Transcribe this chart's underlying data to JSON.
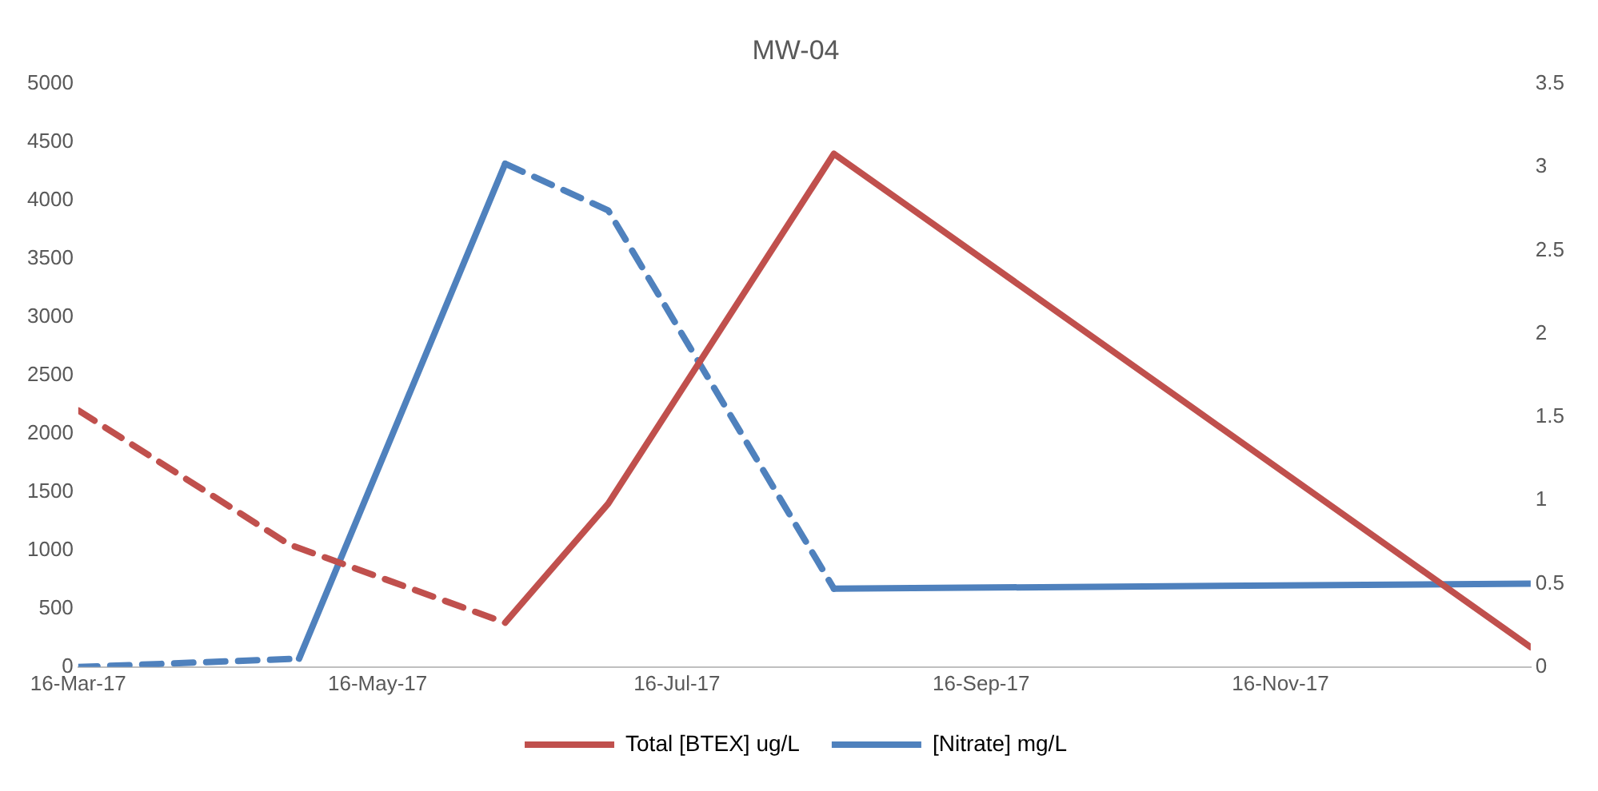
{
  "chart_data": {
    "type": "line",
    "title": "MW-04",
    "xlim": [
      "2017-03-16",
      "2018-01-06"
    ],
    "xticks": [
      {
        "value": "2017-03-16",
        "label": "16-Mar-17"
      },
      {
        "value": "2017-05-16",
        "label": "16-May-17"
      },
      {
        "value": "2017-07-16",
        "label": "16-Jul-17"
      },
      {
        "value": "2017-09-16",
        "label": "16-Sep-17"
      },
      {
        "value": "2017-11-16",
        "label": "16-Nov-17"
      }
    ],
    "ylim": [
      0,
      5000
    ],
    "yticks": [
      0,
      500,
      1000,
      1500,
      2000,
      2500,
      3000,
      3500,
      4000,
      4500,
      5000
    ],
    "y2lim": [
      0,
      3.5
    ],
    "y2ticks": [
      0,
      0.5,
      1,
      1.5,
      2,
      2.5,
      3,
      3.5
    ],
    "grid": false,
    "legend": "bottom",
    "marker": "none",
    "series": [
      {
        "name": "Total [BTEX] ug/L",
        "color": "#c0504d",
        "line_style": "solid",
        "x": [
          "2017-06-11",
          "2017-07-02",
          "2017-08-17",
          "2018-01-06"
        ],
        "values": [
          380,
          1400,
          4400,
          170
        ]
      },
      {
        "color": "#c0504d",
        "line_style": "dashed",
        "x": [
          "2017-03-16",
          "2017-04-28",
          "2017-06-11"
        ],
        "values": [
          2200,
          1050,
          380
        ]
      },
      {
        "name": "[Nitrate] mg/L",
        "color": "#4f81bd",
        "line_style": "solid",
        "axis": "y2",
        "x": [
          "2017-04-30",
          "2017-06-11"
        ],
        "values": [
          0.05,
          3.02
        ]
      },
      {
        "color": "#4f81bd",
        "line_style": "solid",
        "axis": "y2",
        "x": [
          "2017-08-17",
          "2018-01-06"
        ],
        "values": [
          0.47,
          0.5
        ]
      },
      {
        "color": "#4f81bd",
        "line_style": "dashed",
        "axis": "y2",
        "x": [
          "2017-03-16",
          "2017-04-30"
        ],
        "values": [
          0,
          0.05
        ]
      },
      {
        "color": "#4f81bd",
        "line_style": "dashed",
        "axis": "y2",
        "x": [
          "2017-06-11",
          "2017-07-02",
          "2017-08-17"
        ],
        "values": [
          3.02,
          2.74,
          0.47
        ]
      }
    ]
  }
}
